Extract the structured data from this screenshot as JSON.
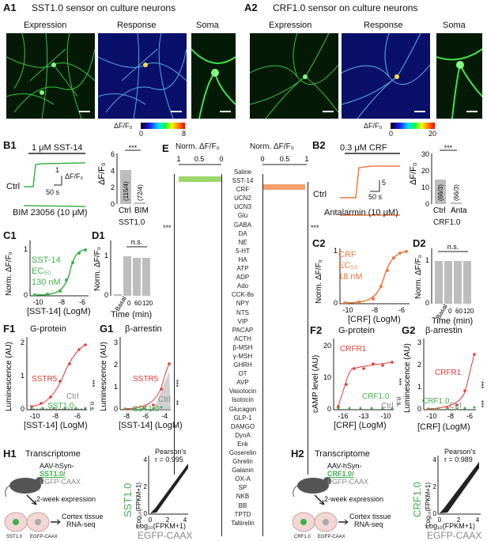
{
  "panelA1": {
    "label": "A1",
    "title": "SST1.0 sensor on culture neurons",
    "img_titles": [
      "Expression",
      "Response",
      "Soma"
    ],
    "cbar": [
      "ΔF/F₀",
      "0",
      "8"
    ]
  },
  "panelA2": {
    "label": "A2",
    "title": "CRF1.0 sensor on culture neurons",
    "img_titles": [
      "Expression",
      "Response",
      "Soma"
    ],
    "cbar": [
      "ΔF/F₀",
      "0",
      "20"
    ]
  },
  "panelB1": {
    "label": "B1",
    "stim": "1 μM SST-14",
    "ctrl": "Ctrl",
    "bim": "BIM 23056 (10 μM)",
    "scale_y": "1",
    "scale_y_unit": "ΔF/F₀",
    "scale_x": "50 s",
    "ylab": "ΔF/F₀",
    "yticks": [
      "0",
      "2",
      "4",
      "6"
    ],
    "n1": "(115/4)",
    "n2": "(72/4)",
    "xcat": [
      "Ctrl",
      "BIM"
    ],
    "xunder": "SST1.0",
    "sig": "***"
  },
  "panelB2": {
    "label": "B2",
    "stim": "0.3 μM CRF",
    "ctrl": "Ctrl",
    "anta": "Antalarmin (10 μM)",
    "scale_y": "5",
    "scale_x": "50 s",
    "ylab": "ΔF/F₀",
    "yticks": [
      "0",
      "10",
      "20",
      "30"
    ],
    "n1": "(66/3)",
    "n2": "(66/3)",
    "xcat": [
      "Ctrl",
      "Anta"
    ],
    "xunder": "CRF1.0",
    "sig": "***"
  },
  "panelC1": {
    "label": "C1",
    "ylab": "Norm. ΔF/F₀",
    "xlab": "[SST-14] (LogM)",
    "xticks": [
      "-10",
      "-8",
      "-6"
    ],
    "yticks": [
      "0",
      "1"
    ],
    "legend": [
      "SST-14",
      "EC₅₀",
      "130 nM"
    ]
  },
  "panelC2": {
    "label": "C2",
    "ylab": "Norm. ΔF/F₀",
    "xlab": "[CRF] (LogM)",
    "xticks": [
      "-10",
      "-8",
      "-6"
    ],
    "yticks": [
      "0",
      "1"
    ],
    "legend": [
      "CRF",
      "EC₅₀",
      "18 nM"
    ]
  },
  "panelD1": {
    "label": "D1",
    "ylab": "Norm. ΔF/F₀",
    "xlab": "Time (min)",
    "xticks": [
      "Basal",
      "0",
      "60",
      "120"
    ],
    "yticks": [
      "0",
      "1"
    ],
    "ns": "n.s."
  },
  "panelD2": {
    "label": "D2",
    "ylab": "Norm. ΔF/F₀",
    "xlab": "Time (min)",
    "xticks": [
      "Basal",
      "0",
      "60",
      "120"
    ],
    "yticks": [
      "0",
      "1"
    ],
    "ns": "n.s."
  },
  "panelE": {
    "label": "E",
    "axis_title": "Norm. ΔF/F₀",
    "left_ticks": [
      "1",
      "0.5",
      "0"
    ],
    "right_ticks": [
      "0",
      "0.5",
      "1"
    ],
    "sig": "***",
    "ligands": [
      "Saline",
      "SST-14",
      "CRF",
      "UCN2",
      "UCN3",
      "Glu",
      "GABA",
      "DA",
      "NE",
      "5-HT",
      "HA",
      "ATP",
      "ADP",
      "Ado",
      "CCK-8s",
      "NPY",
      "NTS",
      "VIP",
      "PACAP",
      "ACTH",
      "β-MSH",
      "γ-MSH",
      "GHRH",
      "OT",
      "AVP",
      "Vasotocin",
      "Isotocin",
      "Glucagon",
      "GLP-1",
      "DAMGO",
      "DynA",
      "Enk",
      "Goserelin",
      "Ghrelin",
      "Galanin",
      "OX-A",
      "SP",
      "NKB",
      "BB",
      "TPTD",
      "Taltirelin"
    ]
  },
  "panelF1": {
    "label": "F1",
    "title": "G-protein",
    "ylab": "Luminescence (AU)",
    "xlab": "[SST-14] (LogM)",
    "xticks": [
      "-10",
      "-8",
      "-6"
    ],
    "yticks": [
      "0",
      "1",
      "2"
    ],
    "s1": "SSTR5",
    "s2": "Ctrl",
    "s3": "SST1.0",
    "sig1": "***",
    "sig2": "n.s."
  },
  "panelG1": {
    "label": "G1",
    "title": "β-arrestin",
    "ylab": "Luminescence (AU)",
    "xlab": "[SST-14] (LogM)",
    "xticks": [
      "-8",
      "-6",
      "-4"
    ],
    "yticks": [
      "0",
      "1",
      "2",
      "3"
    ],
    "s1": "SSTR5",
    "s2": "Ctrl",
    "s3": "SST1.0",
    "sig1": "***",
    "sig2": "**"
  },
  "panelF2": {
    "label": "F2",
    "title": "G-protein",
    "ylab": "cAMP level (AU)",
    "xlab": "[CRF] (LogM)",
    "xticks": [
      "-16",
      "-13",
      "-10"
    ],
    "yticks": [
      "0",
      "10",
      "20"
    ],
    "s1": "CRFR1",
    "s2": "CRF1.0",
    "s3": "Ctrl",
    "sig1": "***",
    "sig2": "n.s."
  },
  "panelG2": {
    "label": "G2",
    "title": "β-arrestin",
    "ylab": "Luminescence (AU)",
    "xlab": "[CRF] (LogM)",
    "xticks": [
      "-10",
      "-8",
      "-6"
    ],
    "yticks": [
      "0",
      "1",
      "2",
      "3"
    ],
    "s1": "CRFR1",
    "s2": "CRF1.0",
    "s3": "Ctrl",
    "sig1": "***",
    "sig2": "***"
  },
  "panelH1": {
    "label": "H1",
    "title": "Transcriptome",
    "aav1": "AAV-hSyn-",
    "aav2": "SST1.0/",
    "aav3": "EGFP-CAAX",
    "exp": "2-week expression",
    "tissue1": "Cortex tissue",
    "tissue2": "RNA-seq",
    "cell1": "SST1.0",
    "cell2": "EGFP-CAAX",
    "pearson": "Pearson's",
    "r": "r = 0.995",
    "ylab_big": "SST1.0",
    "ylab": "Log₁₀(FPKM+1)",
    "xlab": "Log₁₀(FPKM+1)",
    "xlab_big": "EGFP-CAAX",
    "ticks": [
      "0",
      "2",
      "4"
    ]
  },
  "panelH2": {
    "label": "H2",
    "title": "Transcriptome",
    "aav1": "AAV-hSyn-",
    "aav2": "CRF1.0/",
    "aav3": "EGFP-CAAX",
    "exp": "2-week expression",
    "tissue1": "Cortex tissue",
    "tissue2": "RNA-seq",
    "cell1": "CRF1.0",
    "cell2": "EGFP-CAAX",
    "pearson": "Pearson's",
    "r": "r = 0.989",
    "ylab_big": "CRF1.0",
    "ylab": "Log₁₀(FPKM+1)",
    "xlab": "Log₁₀(FPKM+1)",
    "xlab_big": "EGFP-CAAX",
    "ticks": [
      "0",
      "2",
      "4"
    ]
  },
  "colors": {
    "green": "#3cb34a",
    "orange": "#f07a3c",
    "red": "#e53935",
    "gray": "#888888"
  }
}
